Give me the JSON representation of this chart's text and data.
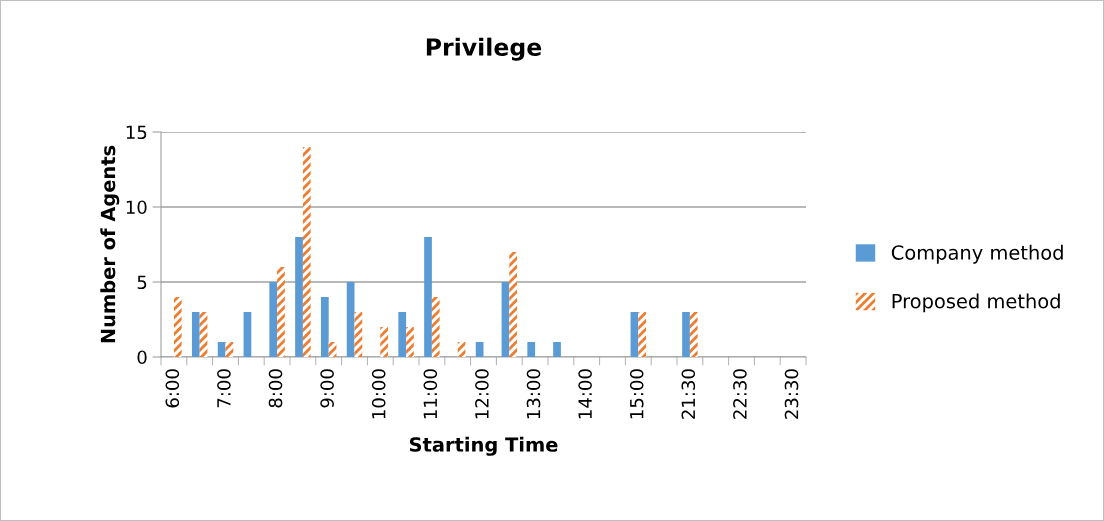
{
  "chart_data": {
    "type": "bar",
    "title": "Privilege",
    "xlabel": "Starting Time",
    "ylabel": "Number of Agents",
    "categories": [
      "6:00",
      null,
      "7:00",
      null,
      "8:00",
      null,
      "9:00",
      null,
      "10:00",
      null,
      "11:00",
      null,
      "12:00",
      null,
      "13:00",
      null,
      "14:00",
      null,
      "15:00",
      null,
      "21:30",
      null,
      "22:30",
      null,
      "23:30"
    ],
    "series": [
      {
        "name": "Company method",
        "color": "#5b9bd5",
        "values": [
          0,
          3,
          1,
          3,
          5,
          8,
          4,
          5,
          0,
          3,
          8,
          0,
          1,
          5,
          1,
          1,
          0,
          0,
          3,
          0,
          3,
          0,
          0,
          0,
          0
        ]
      },
      {
        "name": "Proposed method",
        "color": "#ed7d31",
        "values": [
          4,
          3,
          1,
          0,
          6,
          14,
          1,
          3,
          2,
          2,
          4,
          1,
          0,
          7,
          0,
          0,
          0,
          0,
          3,
          0,
          3,
          0,
          0,
          0,
          0
        ]
      }
    ],
    "ylim": [
      0,
      15
    ],
    "yticks": [
      0,
      5,
      10,
      15
    ],
    "grid": "y",
    "legend": "right"
  }
}
